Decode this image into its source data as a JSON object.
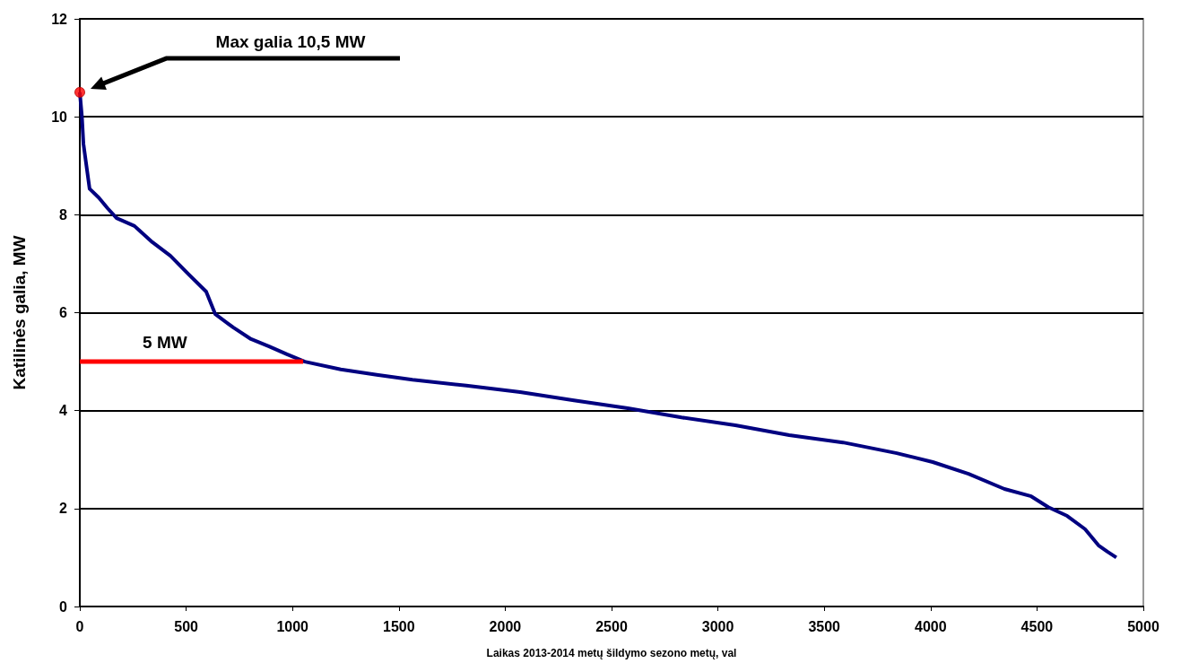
{
  "chart_data": {
    "type": "line",
    "xlabel": "Laikas 2013-2014 metų šildymo sezono metų, val",
    "ylabel": "Katilinės galia, MW",
    "xlim": [
      0,
      5000
    ],
    "xticks": [
      0,
      500,
      1000,
      1500,
      2000,
      2500,
      3000,
      3500,
      4000,
      4500,
      5000
    ],
    "ylim": [
      0,
      12
    ],
    "yticks": [
      0,
      2,
      4,
      6,
      8,
      10,
      12
    ],
    "grid": "y",
    "marker": "none",
    "line_style": "solid",
    "series": [
      {
        "color": "#000080",
        "x": [
          0,
          10,
          17,
          46,
          89,
          131,
          173,
          257,
          341,
          426,
          510,
          594,
          637,
          721,
          805,
          890,
          974,
          1058,
          1227,
          1396,
          1564,
          1817,
          2070,
          2323,
          2576,
          2829,
          3082,
          3335,
          3588,
          3841,
          4010,
          4178,
          4347,
          4473,
          4553,
          4642,
          4726,
          4789,
          4831,
          4873
        ],
        "values": [
          10.5,
          10.0,
          9.45,
          8.53,
          8.35,
          8.13,
          7.93,
          7.77,
          7.44,
          7.16,
          6.79,
          6.43,
          5.97,
          5.7,
          5.46,
          5.31,
          5.15,
          5.0,
          4.84,
          4.73,
          4.63,
          4.51,
          4.38,
          4.21,
          4.05,
          3.86,
          3.7,
          3.5,
          3.35,
          3.13,
          2.95,
          2.71,
          2.4,
          2.25,
          2.03,
          1.85,
          1.58,
          1.25,
          1.12,
          1.0
        ]
      },
      {
        "type": "line",
        "color": "#ff0000",
        "x": [
          0,
          1050
        ],
        "values": [
          5,
          5
        ]
      },
      {
        "type": "scatter",
        "marker": "circle",
        "color": "#ff0000",
        "x": [
          0
        ],
        "values": [
          10.5
        ]
      }
    ],
    "annotations": [
      "Max galia 10,5 MW",
      {
        "text": "5 MW",
        "x": 400,
        "y": 5
      }
    ]
  }
}
